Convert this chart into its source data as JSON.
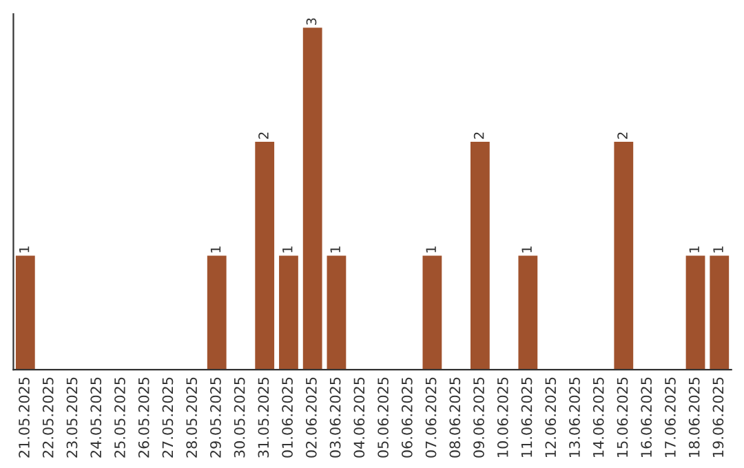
{
  "chart_data": {
    "type": "bar",
    "categories": [
      "21.05.2025",
      "22.05.2025",
      "23.05.2025",
      "24.05.2025",
      "25.05.2025",
      "26.05.2025",
      "27.05.2025",
      "28.05.2025",
      "29.05.2025",
      "30.05.2025",
      "31.05.2025",
      "01.06.2025",
      "02.06.2025",
      "03.06.2025",
      "04.06.2025",
      "05.06.2025",
      "06.06.2025",
      "07.06.2025",
      "08.06.2025",
      "09.06.2025",
      "10.06.2025",
      "11.06.2025",
      "12.06.2025",
      "13.06.2025",
      "14.06.2025",
      "15.06.2025",
      "16.06.2025",
      "17.06.2025",
      "18.06.2025",
      "19.06.2025"
    ],
    "values": [
      1,
      0,
      0,
      0,
      0,
      0,
      0,
      0,
      1,
      0,
      2,
      1,
      3,
      1,
      0,
      0,
      0,
      1,
      0,
      2,
      0,
      1,
      0,
      0,
      0,
      2,
      0,
      0,
      1,
      1
    ],
    "value_labels": [
      "1",
      null,
      null,
      null,
      null,
      null,
      null,
      null,
      "1",
      null,
      "2",
      "1",
      "3",
      "1",
      null,
      null,
      null,
      "1",
      null,
      "2",
      null,
      "1",
      null,
      null,
      null,
      "2",
      null,
      null,
      "1",
      "1"
    ],
    "color": "#a0522d",
    "tick_labels": "x",
    "grid": false,
    "legend": false
  }
}
